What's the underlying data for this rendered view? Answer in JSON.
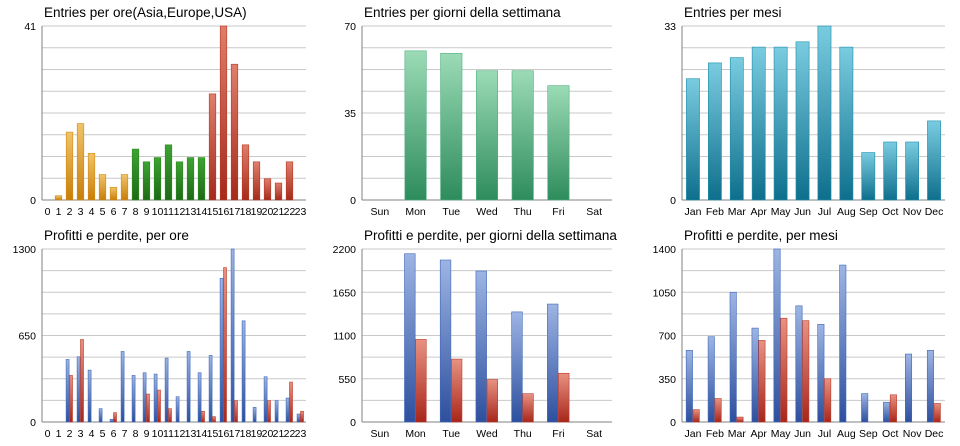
{
  "colors": {
    "orange": "#D38A12",
    "green": "#2C8A1E",
    "red": "#B53A26",
    "mint": "#52AF80",
    "teal": "#1B8EA8",
    "blue": "#3F68B8",
    "red2": "#BC3A2A"
  },
  "chart_data": [
    {
      "type": "bar",
      "title": "Entries per ore(Asia,Europe,USA)",
      "categories": [
        "0",
        "1",
        "2",
        "3",
        "4",
        "5",
        "6",
        "7",
        "8",
        "9",
        "10",
        "11",
        "12",
        "13",
        "14",
        "15",
        "16",
        "17",
        "18",
        "19",
        "20",
        "21",
        "22",
        "23"
      ],
      "ylim": [
        0,
        41
      ],
      "yticks": [
        0,
        41
      ],
      "series": [
        {
          "values": [
            0,
            1,
            16,
            18,
            11,
            6,
            3,
            6,
            12,
            9,
            10,
            13,
            9,
            10,
            10,
            25,
            41,
            32,
            13,
            9,
            5,
            4,
            9,
            0
          ],
          "colors": [
            "orange",
            "orange",
            "orange",
            "orange",
            "orange",
            "orange",
            "orange",
            "orange",
            "green",
            "green",
            "green",
            "green",
            "green",
            "green",
            "green",
            "red",
            "red",
            "red",
            "red",
            "red",
            "red",
            "red",
            "red",
            "red"
          ]
        }
      ]
    },
    {
      "type": "bar",
      "title": "Entries per giorni della settimana",
      "categories": [
        "Sun",
        "Mon",
        "Tue",
        "Wed",
        "Thu",
        "Fri",
        "Sat"
      ],
      "ylim": [
        0,
        70
      ],
      "yticks": [
        0,
        35,
        70
      ],
      "series": [
        {
          "values": [
            0,
            60,
            59,
            52,
            52,
            46,
            0
          ],
          "color": "mint"
        }
      ]
    },
    {
      "type": "bar",
      "title": "Entries per mesi",
      "categories": [
        "Jan",
        "Feb",
        "Mar",
        "Apr",
        "May",
        "Jun",
        "Jul",
        "Aug",
        "Sep",
        "Oct",
        "Nov",
        "Dec"
      ],
      "ylim": [
        0,
        33
      ],
      "yticks": [
        0,
        33
      ],
      "series": [
        {
          "values": [
            23,
            26,
            27,
            29,
            29,
            30,
            33,
            29,
            9,
            11,
            11,
            15
          ],
          "color": "teal"
        }
      ]
    },
    {
      "type": "bar",
      "title": "Profitti e perdite, per ore",
      "categories": [
        "0",
        "1",
        "2",
        "3",
        "4",
        "5",
        "6",
        "7",
        "8",
        "9",
        "10",
        "11",
        "12",
        "13",
        "14",
        "15",
        "16",
        "17",
        "18",
        "19",
        "20",
        "21",
        "22",
        "23"
      ],
      "ylim": [
        0,
        1300
      ],
      "yticks": [
        0,
        650,
        1300
      ],
      "series": [
        {
          "values": [
            0,
            0,
            470,
            490,
            390,
            100,
            20,
            530,
            350,
            370,
            360,
            480,
            190,
            530,
            370,
            500,
            1080,
            1300,
            760,
            110,
            340,
            160,
            180,
            60
          ],
          "color": "blue"
        },
        {
          "values": [
            0,
            0,
            350,
            620,
            0,
            0,
            70,
            0,
            0,
            210,
            240,
            100,
            0,
            0,
            80,
            40,
            1160,
            160,
            0,
            0,
            160,
            0,
            300,
            80
          ],
          "color": "red2"
        }
      ]
    },
    {
      "type": "bar",
      "title": "Profitti e perdite, per giorni della settimana",
      "categories": [
        "Sun",
        "Mon",
        "Tue",
        "Wed",
        "Thu",
        "Fri",
        "Sat"
      ],
      "ylim": [
        0,
        2200
      ],
      "yticks": [
        0,
        550,
        1100,
        1650,
        2200
      ],
      "series": [
        {
          "values": [
            0,
            2140,
            2060,
            1920,
            1400,
            1500,
            0
          ],
          "color": "blue"
        },
        {
          "values": [
            0,
            1050,
            800,
            540,
            360,
            620,
            0
          ],
          "color": "red2"
        }
      ]
    },
    {
      "type": "bar",
      "title": "Profitti e perdite, per mesi",
      "categories": [
        "Jan",
        "Feb",
        "Mar",
        "Apr",
        "May",
        "Jun",
        "Jul",
        "Aug",
        "Sep",
        "Oct",
        "Nov",
        "Dec"
      ],
      "ylim": [
        0,
        1400
      ],
      "yticks": [
        0,
        350,
        700,
        1050,
        1400
      ],
      "series": [
        {
          "values": [
            580,
            690,
            1050,
            760,
            1400,
            940,
            790,
            1270,
            230,
            160,
            550,
            580
          ],
          "color": "blue"
        },
        {
          "values": [
            100,
            190,
            40,
            660,
            840,
            820,
            350,
            0,
            0,
            220,
            0,
            150
          ],
          "color": "red2"
        }
      ]
    }
  ]
}
